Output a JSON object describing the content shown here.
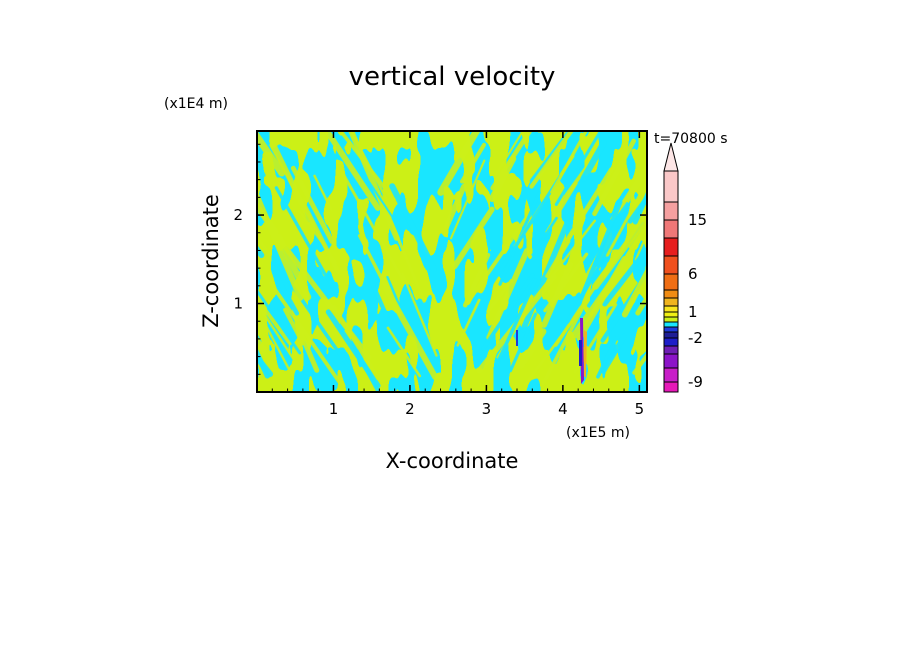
{
  "chart_data": {
    "type": "heatmap",
    "title": "vertical velocity",
    "time_label": "t=70800 s",
    "xlabel": "X-coordinate",
    "ylabel": "Z-coordinate",
    "x_unit": "(x1E5 m)",
    "y_unit": "(x1E4 m)",
    "xlim": [
      0,
      5.1
    ],
    "ylim": [
      0,
      2.95
    ],
    "x_ticks": [
      1,
      2,
      3,
      4,
      5
    ],
    "y_ticks": [
      1,
      2
    ],
    "dominant_levels": [
      {
        "range": "0 to 1",
        "color": "#ccf019"
      },
      {
        "range": "-1 to 0",
        "color": "#19e6ff"
      }
    ],
    "colorbar": {
      "tick_labels": [
        "15",
        "6",
        "1",
        "-2",
        "-9"
      ],
      "levels": [
        "-12",
        "-9",
        "-6",
        "-4",
        "-3",
        "-2",
        "-1",
        "-0.5",
        "0",
        "0.5",
        "1",
        "2",
        "3",
        "4",
        "6",
        "9",
        "12",
        "15",
        "20",
        "25"
      ],
      "colors": [
        "#e619b8",
        "#c81ec8",
        "#8c14c8",
        "#6e1eb4",
        "#1e1ec8",
        "#1e1e96",
        "#1e3cdc",
        "#19e6ff",
        "#ccf019",
        "#f0f014",
        "#fae61e",
        "#f0b41e",
        "#f08c14",
        "#f06e14",
        "#f0501e",
        "#e61e1e",
        "#f07878",
        "#f5a0a0",
        "#fac8c8"
      ]
    }
  }
}
